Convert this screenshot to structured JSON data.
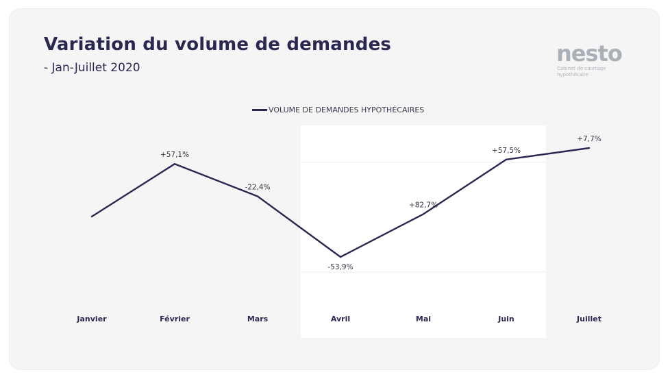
{
  "header": {
    "title": "Variation du volume de demandes",
    "subtitle": "- Jan-Juillet 2020"
  },
  "logo": {
    "word": "nesto",
    "tagline": "Cabinet de courtage hypothécaire"
  },
  "colors": {
    "line": "#2a2850",
    "card_background": "#f5f5f6",
    "highlight_panel": "#ffffff"
  },
  "chart_data": {
    "type": "line",
    "categories": [
      "Janvier",
      "Février",
      "Mars",
      "Avril",
      "Mai",
      "Juin",
      "Juillet"
    ],
    "series": [
      {
        "name": "VOLUME DE DEMANDES HYPOTHÉCAIRES",
        "values": [
          100,
          157.1,
          121.9,
          56.2,
          102.7,
          161.8,
          174.3
        ]
      }
    ],
    "data_labels": [
      "",
      "+57,1%",
      "-22,4%",
      "-53,9%",
      "+82,7%",
      "+57,5%",
      "+7,7%"
    ],
    "highlight_range": [
      "Avril",
      "Juin"
    ],
    "legend_position": "top-center",
    "grid": false
  }
}
